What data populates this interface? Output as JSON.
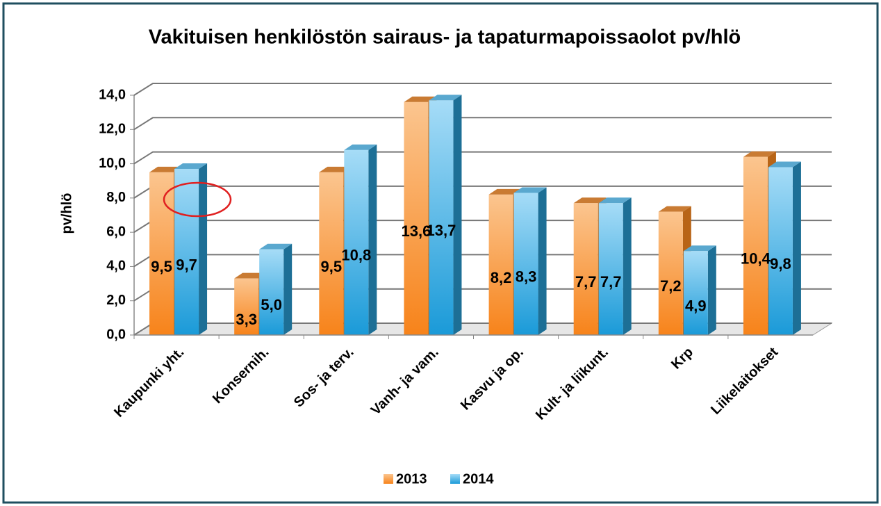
{
  "chart_data": {
    "type": "bar",
    "title": "Vakituisen henkilöstön sairaus- ja tapaturmapoissaolot pv/hlö",
    "ylabel": "pv/hlö",
    "categories": [
      "Kaupunki yht.",
      "Konsernih.",
      "Sos- ja terv.",
      "Vanh- ja vam.",
      "Kasvu ja op.",
      "Kult- ja liikunt.",
      "Krp",
      "Liikelaitokset"
    ],
    "series": [
      {
        "name": "2013",
        "color": "#f7932f",
        "values": [
          9.5,
          3.3,
          9.5,
          13.6,
          8.2,
          7.7,
          7.2,
          10.4
        ],
        "value_labels": [
          "9,5",
          "3,3",
          "9,5",
          "13,6",
          "8,2",
          "7,7",
          "7,2",
          "10,4"
        ]
      },
      {
        "name": "2014",
        "color": "#3fb0e8",
        "values": [
          9.7,
          5.0,
          10.8,
          13.7,
          8.3,
          7.7,
          4.9,
          9.8
        ],
        "value_labels": [
          "9,7",
          "5,0",
          "10,8",
          "13,7",
          "8,3",
          "7,7",
          "4,9",
          "9,8"
        ]
      }
    ],
    "ylim": [
      0,
      14
    ],
    "yticks": [
      {
        "value": 0,
        "label": "0,0"
      },
      {
        "value": 2,
        "label": "2,0"
      },
      {
        "value": 4,
        "label": "4,0"
      },
      {
        "value": 6,
        "label": "6,0"
      },
      {
        "value": 8,
        "label": "8,0"
      },
      {
        "value": 10,
        "label": "10,0"
      },
      {
        "value": 12,
        "label": "12,0"
      },
      {
        "value": 14,
        "label": "14,0"
      }
    ],
    "grid": true,
    "legend": "bottom"
  }
}
